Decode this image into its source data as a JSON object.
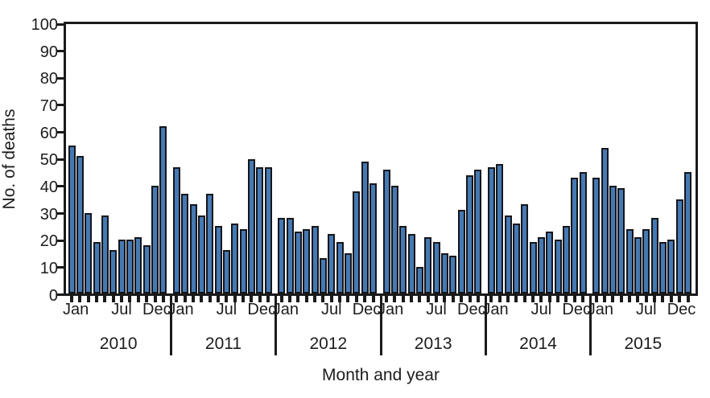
{
  "chart_data": {
    "type": "bar",
    "title": "",
    "xlabel": "Month and year",
    "ylabel": "No. of deaths",
    "ylim": [
      0,
      100
    ],
    "ytick_step": 10,
    "yticks": [
      0,
      10,
      20,
      30,
      40,
      50,
      60,
      70,
      80,
      90,
      100
    ],
    "grid": false,
    "month_labels": [
      {
        "month_index": 0,
        "label": "Jan"
      },
      {
        "month_index": 6,
        "label": "Jul"
      },
      {
        "month_index": 11,
        "label": "Dec"
      }
    ],
    "years": [
      {
        "year": "2010",
        "values": [
          55,
          51,
          30,
          19,
          29,
          16,
          20,
          20,
          21,
          18,
          40,
          62
        ]
      },
      {
        "year": "2011",
        "values": [
          47,
          37,
          33,
          29,
          37,
          25,
          16,
          26,
          24,
          50,
          47,
          47
        ]
      },
      {
        "year": "2012",
        "values": [
          28,
          28,
          23,
          24,
          25,
          13,
          22,
          19,
          15,
          38,
          49,
          41
        ]
      },
      {
        "year": "2013",
        "values": [
          46,
          40,
          25,
          22,
          10,
          21,
          19,
          15,
          14,
          31,
          44,
          46
        ]
      },
      {
        "year": "2014",
        "values": [
          47,
          48,
          29,
          26,
          33,
          19,
          21,
          23,
          20,
          25,
          43,
          45
        ]
      },
      {
        "year": "2015",
        "values": [
          43,
          54,
          40,
          39,
          24,
          21,
          24,
          28,
          19,
          20,
          35,
          45
        ]
      }
    ],
    "colors": {
      "bar_fill": "#4579b2",
      "bar_border": "#14161c",
      "axis": "#1a1a1a",
      "text": "#1d1d1f",
      "background": "#ffffff"
    }
  }
}
